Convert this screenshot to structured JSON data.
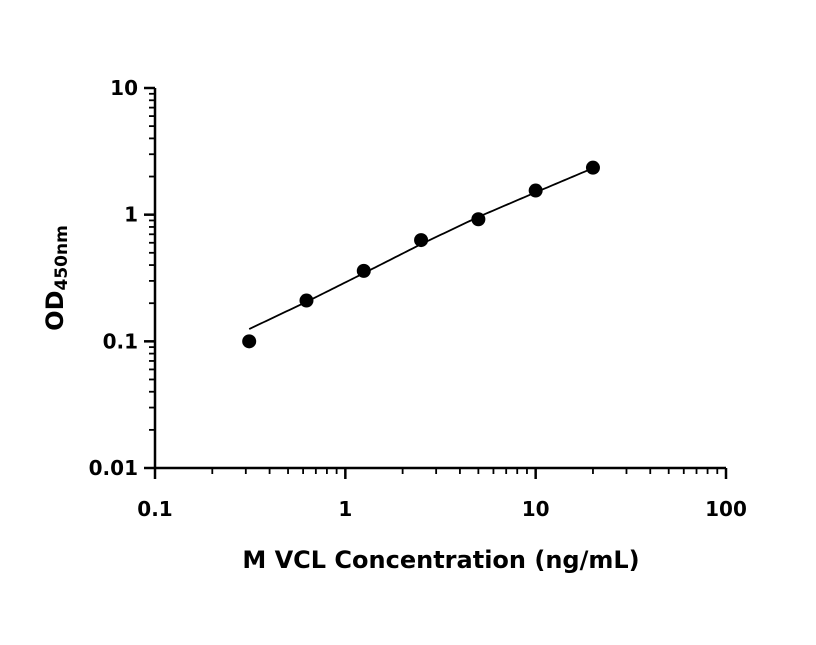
{
  "chart_data": {
    "type": "scatter",
    "xlabel": "M VCL Concentration (ng/mL)",
    "ylabel": {
      "main": "OD",
      "subscript": "450nm"
    },
    "xscale": "log",
    "yscale": "log",
    "xlim": [
      0.1,
      100
    ],
    "ylim": [
      0.01,
      10
    ],
    "x_ticks": [
      0.1,
      1,
      10,
      100
    ],
    "x_tick_labels": [
      "0.1",
      "1",
      "10",
      "100"
    ],
    "y_ticks": [
      0.01,
      0.1,
      1,
      10
    ],
    "y_tick_labels": [
      "0.01",
      "0.1",
      "1",
      "10"
    ],
    "grid": false,
    "series": [
      {
        "x": [
          0.3125,
          0.625,
          1.25,
          2.5,
          5,
          10,
          20
        ],
        "y": [
          0.1,
          0.21,
          0.36,
          0.63,
          0.92,
          1.55,
          2.35
        ],
        "marker": "circle",
        "color": "#000000"
      }
    ],
    "fit_curve": {
      "x": [
        0.3125,
        0.625,
        1.25,
        2.5,
        5,
        10,
        20
      ],
      "y": [
        0.125,
        0.205,
        0.345,
        0.585,
        0.96,
        1.5,
        2.33
      ],
      "color": "#000000"
    }
  }
}
